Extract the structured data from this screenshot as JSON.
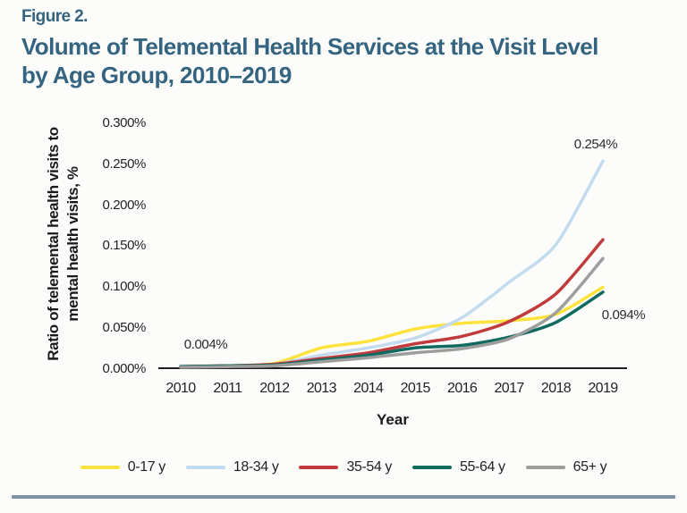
{
  "figure": {
    "label": "Figure 2."
  },
  "title": {
    "line1": "Volume of Telemental Health Services at the Visit Level",
    "line2": "by Age Group, 2010–2019"
  },
  "chart_data": {
    "type": "line",
    "title": "Volume of Telemental Health Services at the Visit Level by Age Group, 2010–2019",
    "xlabel": "Year",
    "ylabel": "Ratio of telemental health visits to mental health visits, %",
    "ylabel_lines": [
      "Ratio of telemental health visits to",
      "mental health visits, %"
    ],
    "x": [
      2010,
      2011,
      2012,
      2013,
      2014,
      2015,
      2016,
      2017,
      2018,
      2019
    ],
    "y_axis": {
      "min": 0,
      "max": 0.3,
      "tick_step": 0.05,
      "tick_labels": [
        "0.300%",
        "0.250%",
        "0.200%",
        "0.150%",
        "0.100%",
        "0.050%",
        "0.000%"
      ]
    },
    "grid": false,
    "legend_position": "bottom",
    "series": [
      {
        "name": "0-17 y",
        "color": "#ffe23c",
        "values": [
          0.004,
          0.004,
          0.007,
          0.026,
          0.034,
          0.049,
          0.056,
          0.059,
          0.067,
          0.1
        ]
      },
      {
        "name": "18-34 y",
        "color": "#c3dbef",
        "values": [
          0.004,
          0.004,
          0.006,
          0.017,
          0.026,
          0.038,
          0.063,
          0.106,
          0.152,
          0.254
        ]
      },
      {
        "name": "35-54 y",
        "color": "#c23b3c",
        "values": [
          0.003,
          0.004,
          0.006,
          0.013,
          0.02,
          0.031,
          0.04,
          0.058,
          0.092,
          0.158
        ]
      },
      {
        "name": "55-64 y",
        "color": "#116a60",
        "values": [
          0.003,
          0.004,
          0.005,
          0.011,
          0.017,
          0.026,
          0.029,
          0.039,
          0.057,
          0.094
        ]
      },
      {
        "name": "65+ y",
        "color": "#9d9d9c",
        "values": [
          0.002,
          0.003,
          0.004,
          0.009,
          0.014,
          0.02,
          0.025,
          0.037,
          0.069,
          0.135
        ]
      }
    ],
    "annotations": [
      {
        "text": "0.004%",
        "series": "all",
        "x": 2010
      },
      {
        "text": "0.254%",
        "series": "18-34 y",
        "x": 2019
      },
      {
        "text": "0.094%",
        "series": "55-64 y",
        "x": 2019
      }
    ]
  },
  "colors": {
    "title": "#356480",
    "axis": "#231f20",
    "bottom_bar": "#7e93a6",
    "background": "#fcfdfb"
  }
}
